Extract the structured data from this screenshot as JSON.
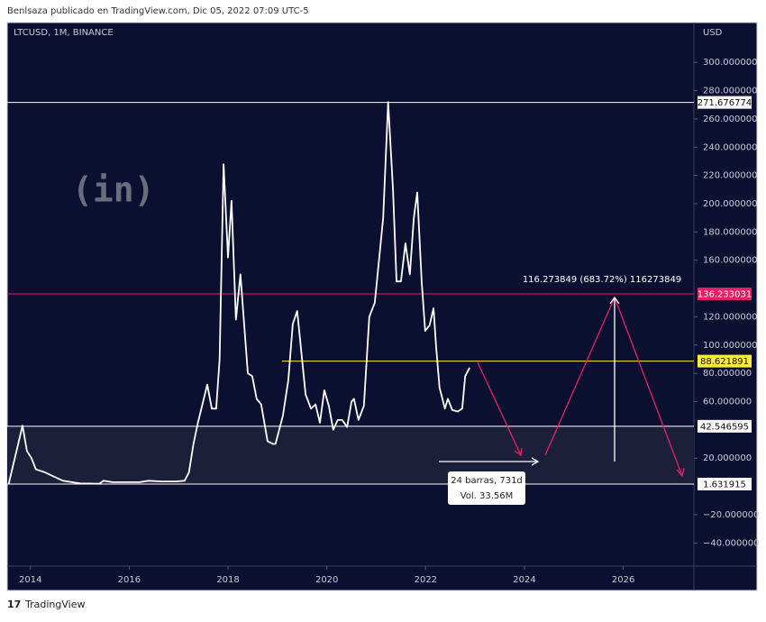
{
  "header": "Benlsaza publicado en TradingView.com, Dic 05, 2022 07:09 UTC-5",
  "footer": "TradingView",
  "chart_data": {
    "type": "line",
    "title": "LTCUSD, 1M, BINANCE",
    "y_axis_label": "USD",
    "watermark": "(in)",
    "color": "#ffffff",
    "x": [
      2013.56,
      2013.84,
      2013.93,
      2014.02,
      2014.11,
      2014.29,
      2014.47,
      2014.66,
      2014.84,
      2015.02,
      2015.2,
      2015.39,
      2015.48,
      2015.66,
      2015.93,
      2016.21,
      2016.39,
      2016.66,
      2016.94,
      2017.12,
      2017.21,
      2017.3,
      2017.39,
      2017.58,
      2017.67,
      2017.76,
      2017.83,
      2017.91,
      2018.0,
      2018.07,
      2018.16,
      2018.25,
      2018.4,
      2018.49,
      2018.58,
      2018.67,
      2018.8,
      2018.91,
      2018.96,
      2019.11,
      2019.22,
      2019.31,
      2019.4,
      2019.47,
      2019.57,
      2019.68,
      2019.77,
      2019.86,
      2019.95,
      2020.04,
      2020.13,
      2020.22,
      2020.31,
      2020.41,
      2020.5,
      2020.55,
      2020.64,
      2020.75,
      2020.86,
      2020.97,
      2021.14,
      2021.24,
      2021.34,
      2021.41,
      2021.5,
      2021.59,
      2021.68,
      2021.76,
      2021.83,
      2021.92,
      2021.99,
      2022.08,
      2022.16,
      2022.21,
      2022.28,
      2022.39,
      2022.45,
      2022.54,
      2022.65,
      2022.74,
      2022.8,
      2022.89
    ],
    "values": [
      1.6,
      43,
      25,
      20,
      12,
      10,
      7,
      4,
      3,
      2,
      2,
      1.8,
      4,
      3,
      3,
      3,
      4,
      3.5,
      3.5,
      4,
      10,
      30,
      45,
      72,
      55,
      55,
      90,
      228,
      162,
      202,
      118,
      150,
      80,
      78,
      62,
      58,
      32,
      30,
      30,
      50,
      75,
      115,
      124,
      100,
      65,
      55,
      58,
      45,
      68,
      57,
      40,
      47,
      47,
      42,
      60,
      62,
      47,
      57,
      120,
      130,
      190,
      272,
      210,
      145,
      145,
      172,
      150,
      190,
      208,
      145,
      110,
      114,
      126,
      100,
      70,
      55,
      62,
      54,
      53,
      55,
      78,
      84
    ],
    "xlim": [
      2013.53,
      2027.43
    ],
    "xticks": [
      2014,
      2016,
      2018,
      2020,
      2022,
      2024,
      2026
    ],
    "ylim": [
      -54.5,
      328.2
    ],
    "yticks": [
      {
        "value": 300,
        "label": "300.000000"
      },
      {
        "value": 280,
        "label": "280.000000"
      },
      {
        "value": 260,
        "label": "260.000000"
      },
      {
        "value": 240,
        "label": "240.000000"
      },
      {
        "value": 220,
        "label": "220.000000"
      },
      {
        "value": 200,
        "label": "200.000000"
      },
      {
        "value": 180,
        "label": "180.000000"
      },
      {
        "value": 160,
        "label": "160.000000"
      },
      {
        "value": 120,
        "label": "120.000000"
      },
      {
        "value": 100,
        "label": "100.000000"
      },
      {
        "value": 80,
        "label": "80.000000"
      },
      {
        "value": 60,
        "label": "60.000000"
      },
      {
        "value": 20,
        "label": "20.000000"
      },
      {
        "value": -20,
        "label": "−20.000000"
      },
      {
        "value": -40,
        "label": "−40.000000"
      }
    ],
    "levels": [
      {
        "value": 271.676774,
        "color": "#ffffff"
      },
      {
        "value": 136.233031,
        "color": "#e91e63"
      },
      {
        "value": 88.621891,
        "color": "#ffeb3b",
        "x_start": 2019.09
      },
      {
        "value": 42.546595,
        "color": "#ffffff"
      },
      {
        "value": 1.631915,
        "color": "#ffffff"
      }
    ],
    "annotation": "116.273849 (683.72%) 116273849",
    "range_box": [
      "24 barras, 731d",
      "Vol. 33.56M"
    ]
  }
}
